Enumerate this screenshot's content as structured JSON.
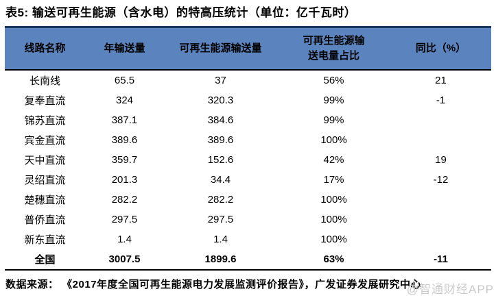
{
  "title": "表5:  输送可再生能源（含水电）的特高压统计（单位：亿千瓦时）",
  "table": {
    "columns": [
      {
        "label": "线路名称"
      },
      {
        "label": "年输送量"
      },
      {
        "label": "可再生能源输送量"
      },
      {
        "label": "可再生能源输送电量占比",
        "line1": "可再生能源输",
        "line2": "送电量占比"
      },
      {
        "label": "同比（%）"
      }
    ],
    "rows": [
      {
        "name": "长南线",
        "annual": "65.5",
        "renewable": "37",
        "share": "56%",
        "yoy": "21",
        "is_total": false
      },
      {
        "name": "复奉直流",
        "annual": "324",
        "renewable": "320.3",
        "share": "99%",
        "yoy": "-1",
        "is_total": false
      },
      {
        "name": "锦苏直流",
        "annual": "387.1",
        "renewable": "384.6",
        "share": "99%",
        "yoy": "",
        "is_total": false
      },
      {
        "name": "宾金直流",
        "annual": "389.6",
        "renewable": "389.6",
        "share": "100%",
        "yoy": "",
        "is_total": false
      },
      {
        "name": "天中直流",
        "annual": "359.7",
        "renewable": "152.6",
        "share": "42%",
        "yoy": "19",
        "is_total": false
      },
      {
        "name": "灵绍直流",
        "annual": "201.3",
        "renewable": "34.4",
        "share": "17%",
        "yoy": "-12",
        "is_total": false
      },
      {
        "name": "楚穗直流",
        "annual": "282.2",
        "renewable": "282.2",
        "share": "100%",
        "yoy": "",
        "is_total": false
      },
      {
        "name": "普侨直流",
        "annual": "297.5",
        "renewable": "297.5",
        "share": "100%",
        "yoy": "",
        "is_total": false
      },
      {
        "name": "新东直流",
        "annual": "1.4",
        "renewable": "1.4",
        "share": "100%",
        "yoy": "",
        "is_total": false
      },
      {
        "name": "全国",
        "annual": "3007.5",
        "renewable": "1899.6",
        "share": "63%",
        "yoy": "-11",
        "is_total": true
      }
    ]
  },
  "footer": {
    "source": "数据来源： 《2017年度全国可再生能源电力发展监测评价报告》，广发证券发展研究中心"
  },
  "watermark": "@智通财经APP",
  "colors": {
    "header_fill": "#5b84be",
    "header_top_rule": "#17375e",
    "rule": "#000000",
    "watermark_gray": "#c9c9c9"
  },
  "chart_data": {
    "type": "table",
    "title": "表5: 输送可再生能源（含水电）的特高压统计（单位：亿千瓦时）",
    "columns": [
      "线路名称",
      "年输送量",
      "可再生能源输送量",
      "可再生能源输送电量占比",
      "同比（%）"
    ],
    "rows": [
      [
        "长南线",
        65.5,
        37,
        "56%",
        21
      ],
      [
        "复奉直流",
        324,
        320.3,
        "99%",
        -1
      ],
      [
        "锦苏直流",
        387.1,
        384.6,
        "99%",
        null
      ],
      [
        "宾金直流",
        389.6,
        389.6,
        "100%",
        null
      ],
      [
        "天中直流",
        359.7,
        152.6,
        "42%",
        19
      ],
      [
        "灵绍直流",
        201.3,
        34.4,
        "17%",
        -12
      ],
      [
        "楚穗直流",
        282.2,
        282.2,
        "100%",
        null
      ],
      [
        "普侨直流",
        297.5,
        297.5,
        "100%",
        null
      ],
      [
        "新东直流",
        1.4,
        1.4,
        "100%",
        null
      ],
      [
        "全国",
        3007.5,
        1899.6,
        "63%",
        -11
      ]
    ]
  }
}
